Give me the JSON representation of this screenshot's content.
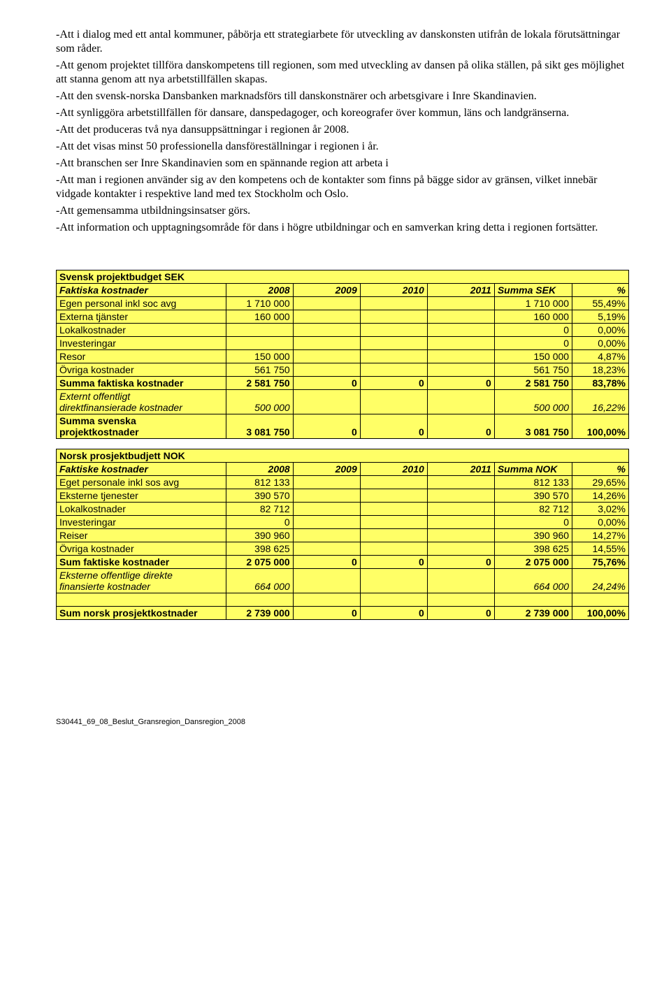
{
  "bullets": [
    "-Att i dialog med ett antal kommuner, påbörja ett strategiarbete för utveckling av danskonsten utifrån de lokala förutsättningar som råder.",
    "-Att genom projektet tillföra danskompetens till regionen, som med utveckling av dansen på olika ställen, på sikt ges möjlighet att stanna genom att nya arbetstillfällen skapas.",
    "-Att den svensk-norska Dansbanken marknadsförs till danskonstnärer och arbetsgivare i Inre Skandinavien.",
    "-Att synliggöra arbetstillfällen för dansare, danspedagoger, och koreografer över kommun, läns och landgränserna.",
    "-Att det produceras två nya dansuppsättningar i regionen år 2008.",
    "-Att det visas minst 50 professionella dansföreställningar i regionen i år.",
    "-Att branschen ser Inre Skandinavien som en spännande region att arbeta i",
    "-Att man i regionen använder sig av den kompetens och de kontakter som finns på bägge sidor av gränsen, vilket innebär vidgade kontakter i respektive land med tex Stockholm och Oslo.",
    "-Att gemensamma utbildningsinsatser görs.",
    "-Att information och upptagningsområde för dans i högre utbildningar och en samverkan kring detta i regionen fortsätter."
  ],
  "swedish": {
    "title": "Svensk projektbudget SEK",
    "headers": [
      "Faktiska kostnader",
      "2008",
      "2009",
      "2010",
      "2011",
      "Summa SEK",
      "%"
    ],
    "rows": [
      {
        "label": "Egen personal inkl soc avg",
        "y2008": "1 710 000",
        "y2009": "",
        "y2010": "",
        "y2011": "",
        "sum": "1 710 000",
        "pct": "55,49%",
        "italic": false
      },
      {
        "label": "Externa tjänster",
        "y2008": "160 000",
        "y2009": "",
        "y2010": "",
        "y2011": "",
        "sum": "160 000",
        "pct": "5,19%",
        "italic": false
      },
      {
        "label": "Lokalkostnader",
        "y2008": "",
        "y2009": "",
        "y2010": "",
        "y2011": "",
        "sum": "0",
        "pct": "0,00%",
        "italic": false
      },
      {
        "label": "Investeringar",
        "y2008": "",
        "y2009": "",
        "y2010": "",
        "y2011": "",
        "sum": "0",
        "pct": "0,00%",
        "italic": false
      },
      {
        "label": "Resor",
        "y2008": "150 000",
        "y2009": "",
        "y2010": "",
        "y2011": "",
        "sum": "150 000",
        "pct": "4,87%",
        "italic": false
      },
      {
        "label": "Övriga kostnader",
        "y2008": "561 750",
        "y2009": "",
        "y2010": "",
        "y2011": "",
        "sum": "561 750",
        "pct": "18,23%",
        "italic": false
      }
    ],
    "sum1": {
      "label": "Summa faktiska kostnader",
      "y2008": "2 581 750",
      "y2009": "0",
      "y2010": "0",
      "y2011": "0",
      "sum": "2 581 750",
      "pct": "83,78%"
    },
    "extern": {
      "label1": "Externt offentligt",
      "label2": "direktfinansierade kostnader",
      "y2008": "500 000",
      "y2009": "",
      "y2010": "",
      "y2011": "",
      "sum": "500 000",
      "pct": "16,22%"
    },
    "sum2": {
      "label1": "Summa svenska",
      "label2": "projektkostnader",
      "y2008": "3 081 750",
      "y2009": "0",
      "y2010": "0",
      "y2011": "0",
      "sum": "3 081 750",
      "pct": "100,00%"
    }
  },
  "norwegian": {
    "title": "Norsk prosjektbudjett NOK",
    "headers": [
      "Faktiske kostnader",
      "2008",
      "2009",
      "2010",
      "2011",
      "Summa NOK",
      "%"
    ],
    "rows": [
      {
        "label": "Eget personale inkl sos avg",
        "y2008": "812 133",
        "y2009": "",
        "y2010": "",
        "y2011": "",
        "sum": "812 133",
        "pct": "29,65%"
      },
      {
        "label": "Eksterne tjenester",
        "y2008": "390 570",
        "y2009": "",
        "y2010": "",
        "y2011": "",
        "sum": "390 570",
        "pct": "14,26%"
      },
      {
        "label": "Lokalkostnader",
        "y2008": "82 712",
        "y2009": "",
        "y2010": "",
        "y2011": "",
        "sum": "82 712",
        "pct": "3,02%"
      },
      {
        "label": "Investeringar",
        "y2008": "0",
        "y2009": "",
        "y2010": "",
        "y2011": "",
        "sum": "0",
        "pct": "0,00%"
      },
      {
        "label": "Reiser",
        "y2008": "390 960",
        "y2009": "",
        "y2010": "",
        "y2011": "",
        "sum": "390 960",
        "pct": "14,27%"
      },
      {
        "label": "Övriga kostnader",
        "y2008": "398 625",
        "y2009": "",
        "y2010": "",
        "y2011": "",
        "sum": "398 625",
        "pct": "14,55%"
      }
    ],
    "sum1": {
      "label": "Sum faktiske kostnader",
      "y2008": "2 075 000",
      "y2009": "0",
      "y2010": "0",
      "y2011": "0",
      "sum": "2 075 000",
      "pct": "75,76%"
    },
    "extern": {
      "label1": "Eksterne offentlige direkte",
      "label2": "finansierte kostnader",
      "y2008": "664 000",
      "y2009": "",
      "y2010": "",
      "y2011": "",
      "sum": "664 000",
      "pct": "24,24%"
    },
    "sum2": {
      "label": "Sum norsk prosjektkostnader",
      "y2008": "2 739 000",
      "y2009": "0",
      "y2010": "0",
      "y2011": "0",
      "sum": "2 739 000",
      "pct": "100,00%"
    }
  },
  "footer": "S30441_69_08_Beslut_Gransregion_Dansregion_2008"
}
